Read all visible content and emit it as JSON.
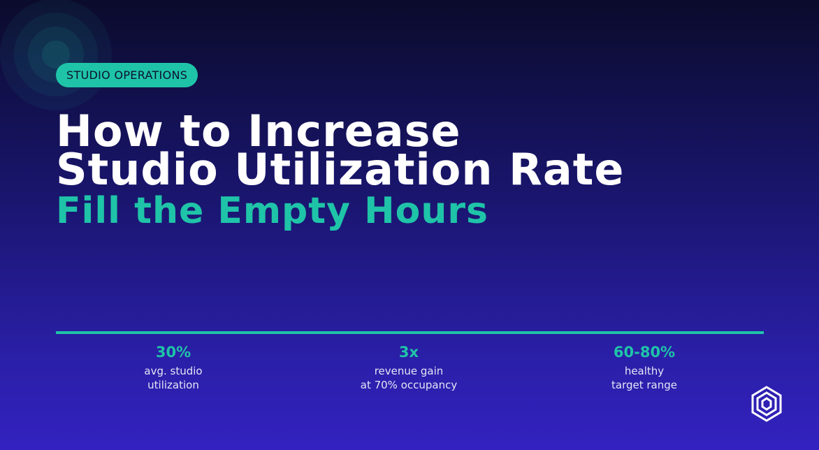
{
  "badge": "STUDIO OPERATIONS",
  "title": {
    "lines": [
      "How to Increase",
      "Studio Utilization Rate"
    ]
  },
  "subtitle": "Fill the Empty Hours",
  "stats": [
    {
      "value": "30%",
      "label": [
        "avg. studio",
        "utilization"
      ]
    },
    {
      "value": "3x",
      "label": [
        "revenue gain",
        "at 70% occupancy"
      ]
    },
    {
      "value": "60-80%",
      "label": [
        "healthy",
        "target range"
      ]
    }
  ]
}
